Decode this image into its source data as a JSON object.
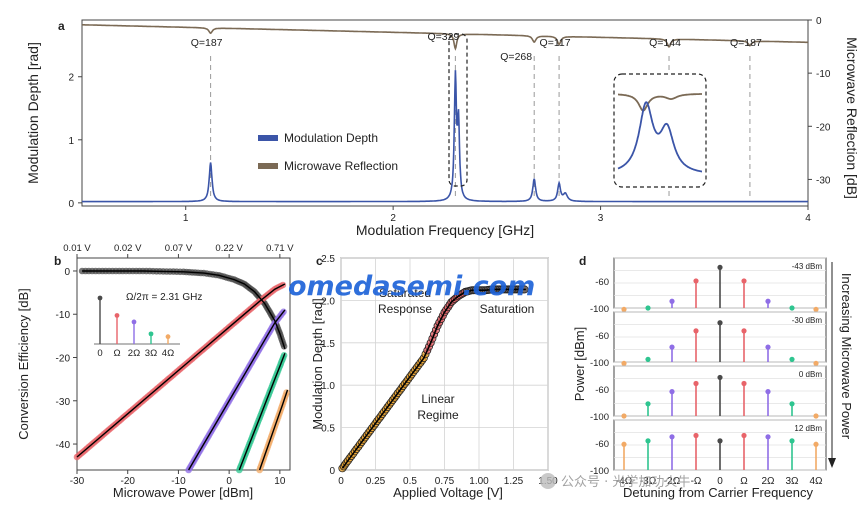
{
  "colors": {
    "modulation": "#3b55a8",
    "reflection": "#7b6a55",
    "harmonics": [
      "#4a4a4a",
      "#e8646a",
      "#8f6ee6",
      "#2fc590",
      "#f2aa66"
    ],
    "linear": "#f0a830",
    "saturation": "#7a6e6a",
    "watermark": "#1e63d8"
  },
  "chart_data": [
    {
      "panel": "a",
      "type": "line",
      "xlabel": "Modulation Frequency [GHz]",
      "ylabel": "Modulation Depth [rad]",
      "y2label": "Microwave Reflection [dB]",
      "xlim": [
        0.5,
        4.0
      ],
      "ylim": [
        -0.05,
        2.9
      ],
      "y2lim": [
        -35,
        0
      ],
      "xticks": [
        "1",
        "2",
        "3",
        "4"
      ],
      "yticks": [
        "0",
        "1",
        "2"
      ],
      "y2ticks": [
        "0",
        "-10",
        "-20",
        "-30"
      ],
      "legend": [
        "Modulation Depth",
        "Microwave Reflection"
      ],
      "legend_position": "center-left",
      "series": [
        {
          "name": "Modulation Depth",
          "baseline": 0.02,
          "peaks": [
            {
              "x": 1.12,
              "height": 0.62,
              "width": 0.008
            },
            {
              "x": 2.3,
              "height": 1.92,
              "width": 0.006
            },
            {
              "x": 2.315,
              "height": 1.2,
              "width": 0.006
            },
            {
              "x": 2.68,
              "height": 0.36,
              "width": 0.008
            },
            {
              "x": 2.8,
              "height": 0.28,
              "width": 0.008
            },
            {
              "x": 2.83,
              "height": 0.12,
              "width": 0.012
            }
          ]
        },
        {
          "name": "Microwave Reflection",
          "start": -0.9,
          "end": -4.2,
          "dips": [
            {
              "x": 1.12,
              "depth": 1.0,
              "width": 0.01
            },
            {
              "x": 2.3,
              "depth": 2.8,
              "width": 0.008
            },
            {
              "x": 2.68,
              "depth": 1.2,
              "width": 0.01
            },
            {
              "x": 2.8,
              "depth": 1.5,
              "width": 0.01
            },
            {
              "x": 3.33,
              "depth": 1.5,
              "width": 0.01
            },
            {
              "x": 3.72,
              "depth": 0.9,
              "width": 0.01
            }
          ]
        }
      ],
      "annotations": [
        {
          "text": "Q=187",
          "x": 1.12
        },
        {
          "text": "Q=329",
          "x": 2.3
        },
        {
          "text": "Q=268",
          "x": 2.68
        },
        {
          "text": "Q=117",
          "x": 2.8
        },
        {
          "text": "Q=144",
          "x": 3.33
        },
        {
          "text": "Q=187",
          "x": 3.72
        }
      ]
    },
    {
      "panel": "b",
      "type": "scatter",
      "xlabel": "Microwave Power [dBm]",
      "ylabel": "Conversion Efficiency [dB]",
      "xlim": [
        -30,
        12
      ],
      "ylim": [
        -46,
        3
      ],
      "xticks": [
        "-30",
        "-20",
        "-10",
        "0",
        "10"
      ],
      "yticks": [
        "0",
        "-10",
        "-20",
        "-30",
        "-40"
      ],
      "top_axis_label": "",
      "top_ticks": [
        {
          "x": -30,
          "label": "0.01 V"
        },
        {
          "x": -20,
          "label": "0.02 V"
        },
        {
          "x": -10,
          "label": "0.07 V"
        },
        {
          "x": 0,
          "label": "0.22 V"
        },
        {
          "x": 10,
          "label": "0.71 V"
        }
      ],
      "inset_title": "Ω/2π = 2.31 GHz",
      "inset_labels": [
        "0",
        "Ω",
        "2Ω",
        "3Ω",
        "4Ω"
      ],
      "inset_heights": [
        1.0,
        0.62,
        0.48,
        0.22,
        0.16
      ],
      "series": [
        {
          "name": "0",
          "points": [
            [
              -29,
              0
            ],
            [
              -25,
              0
            ],
            [
              -21,
              0
            ],
            [
              -17,
              0
            ],
            [
              -13,
              -0.1
            ],
            [
              -9,
              -0.2
            ],
            [
              -5,
              -0.5
            ],
            [
              -2,
              -1.0
            ],
            [
              1,
              -2.0
            ],
            [
              3,
              -3.0
            ],
            [
              5,
              -4.8
            ],
            [
              7,
              -7.5
            ],
            [
              9,
              -11.5
            ],
            [
              10,
              -14.5
            ],
            [
              11,
              -18
            ]
          ]
        },
        {
          "name": "Ω",
          "points": [
            [
              -30,
              -43
            ],
            [
              -25,
              -38
            ],
            [
              -20,
              -33
            ],
            [
              -15,
              -28
            ],
            [
              -10,
              -23
            ],
            [
              -5,
              -18
            ],
            [
              0,
              -13
            ],
            [
              3,
              -10
            ],
            [
              6,
              -7
            ],
            [
              9,
              -4.2
            ],
            [
              11,
              -3.0
            ]
          ]
        },
        {
          "name": "2Ω",
          "points": [
            [
              -8,
              -46
            ],
            [
              -5,
              -40
            ],
            [
              -2,
              -34
            ],
            [
              1,
              -28
            ],
            [
              4,
              -22
            ],
            [
              7,
              -16
            ],
            [
              9,
              -12
            ],
            [
              11,
              -9
            ]
          ]
        },
        {
          "name": "3Ω",
          "points": [
            [
              2,
              -46
            ],
            [
              4,
              -40
            ],
            [
              6,
              -34
            ],
            [
              8,
              -28
            ],
            [
              10,
              -22
            ],
            [
              11,
              -19
            ]
          ]
        },
        {
          "name": "4Ω",
          "points": [
            [
              6,
              -46
            ],
            [
              7.5,
              -41
            ],
            [
              9,
              -36
            ],
            [
              10.5,
              -31
            ],
            [
              11.5,
              -27.5
            ]
          ]
        }
      ]
    },
    {
      "panel": "c",
      "type": "scatter",
      "xlabel": "Applied Voltage [V]",
      "ylabel": "Modulation Depth [rad]",
      "xlim": [
        0,
        1.5
      ],
      "ylim": [
        0,
        2.5
      ],
      "xticks": [
        "0",
        "0.25",
        "0.5",
        "0.75",
        "1.00",
        "1.25",
        "1.50"
      ],
      "yticks": [
        "0",
        "0.5",
        "1.0",
        "1.5",
        "2.0",
        "2.5"
      ],
      "regions": [
        "Linear Regime",
        "Saturated Response",
        "Saturation"
      ],
      "points": [
        [
          0.01,
          0.02
        ],
        [
          0.05,
          0.11
        ],
        [
          0.1,
          0.22
        ],
        [
          0.15,
          0.33
        ],
        [
          0.2,
          0.44
        ],
        [
          0.25,
          0.55
        ],
        [
          0.3,
          0.66
        ],
        [
          0.35,
          0.77
        ],
        [
          0.4,
          0.88
        ],
        [
          0.45,
          0.99
        ],
        [
          0.5,
          1.1
        ],
        [
          0.55,
          1.21
        ],
        [
          0.6,
          1.32
        ],
        [
          0.65,
          1.5
        ],
        [
          0.7,
          1.7
        ],
        [
          0.75,
          1.86
        ],
        [
          0.8,
          1.98
        ],
        [
          0.85,
          2.05
        ],
        [
          0.9,
          2.1
        ],
        [
          0.95,
          2.12
        ],
        [
          1.0,
          2.12
        ],
        [
          1.05,
          2.12
        ],
        [
          1.1,
          2.13
        ],
        [
          1.15,
          2.13
        ],
        [
          1.2,
          2.13
        ],
        [
          1.25,
          2.13
        ],
        [
          1.3,
          2.13
        ],
        [
          1.34,
          2.13
        ]
      ]
    },
    {
      "panel": "d",
      "type": "bar",
      "xlabel": "Detuning from Carrier Frequency",
      "ylabel": "Power [dBm]",
      "right_label": "Increasing Microwave Power",
      "categories": [
        "-4Ω",
        "-3Ω",
        "-2Ω",
        "-Ω",
        "0",
        "Ω",
        "2Ω",
        "3Ω",
        "4Ω"
      ],
      "ylim": [
        -100,
        -35
      ],
      "yticks": [
        "-60",
        "-100"
      ],
      "rows": [
        {
          "label": "-43 dBm",
          "values": [
            -102,
            -100,
            -90,
            -60,
            -40,
            -60,
            -90,
            -100,
            -102
          ]
        },
        {
          "label": "-30 dBm",
          "values": [
            -102,
            -96,
            -78,
            -54,
            -42,
            -54,
            -78,
            -96,
            -102
          ]
        },
        {
          "label": "0 dBm",
          "values": [
            -100,
            -82,
            -64,
            -52,
            -43,
            -52,
            -64,
            -82,
            -100
          ]
        },
        {
          "label": "12 dBm",
          "values": [
            -62,
            -57,
            -51,
            -49,
            -57,
            -49,
            -51,
            -57,
            -62
          ]
        }
      ]
    }
  ],
  "panels": {
    "a": "a",
    "b": "b",
    "c": "c",
    "d": "d"
  },
  "watermark": {
    "logo_text": "omedasemi.com",
    "wechat_text": "公众号 · 光学加功火牛"
  }
}
